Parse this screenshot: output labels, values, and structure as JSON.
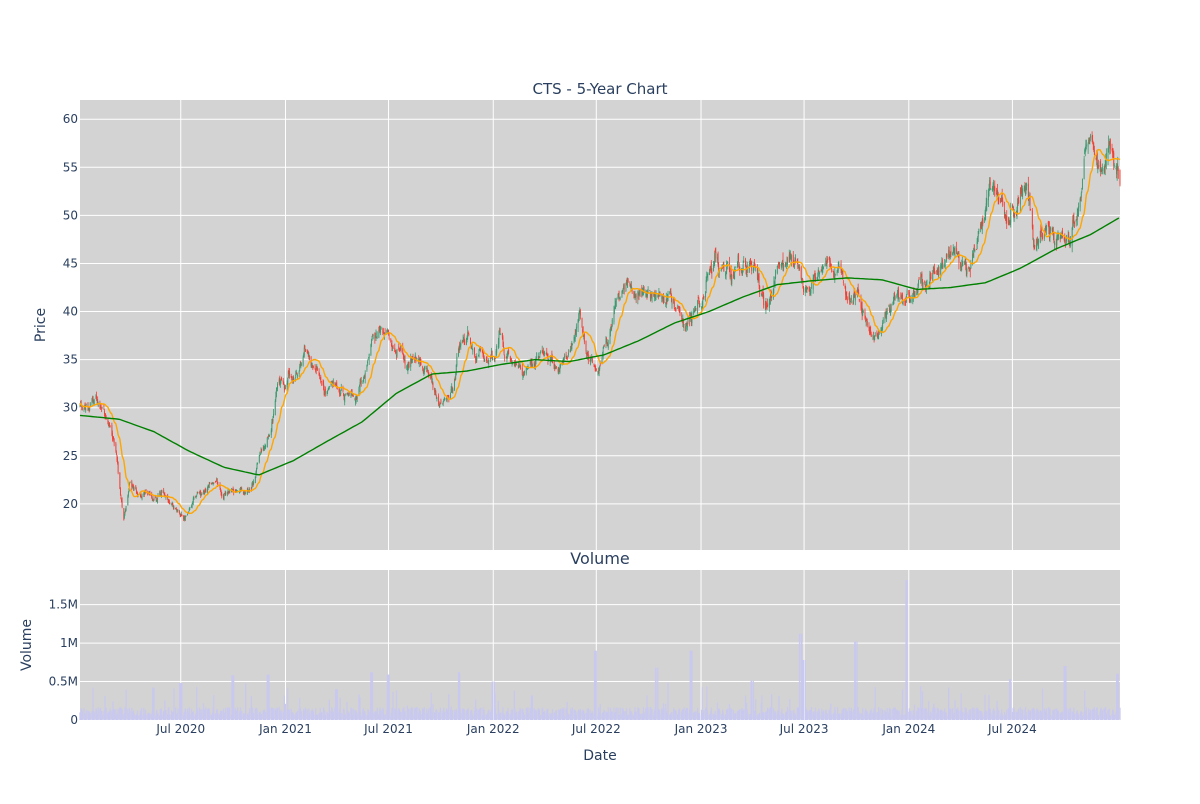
{
  "chart_data": [
    {
      "type": "candlestick",
      "title": "CTS - 5-Year Chart",
      "ylabel": "Price",
      "ylim": [
        15.2,
        62
      ],
      "xlim": [
        "2020-01-06",
        "2025-01-06"
      ],
      "y_ticks": [
        20,
        25,
        30,
        35,
        40,
        45,
        50,
        55,
        60
      ],
      "grid": true,
      "legend": "none",
      "colors": {
        "background": "#d3d3d3",
        "grid": "#ffffff",
        "up": "#3d9970",
        "down": "#ef4136",
        "ma_short": "#ffa500",
        "ma_long": "#008000",
        "text": "#2a3f5f"
      },
      "approx_closes": [
        [
          "2020-01-06",
          30.0
        ],
        [
          "2020-01-27",
          30.5
        ],
        [
          "2020-02-13",
          30.2
        ],
        [
          "2020-02-27",
          27.8
        ],
        [
          "2020-03-10",
          25.0
        ],
        [
          "2020-03-23",
          18.5
        ],
        [
          "2020-04-02",
          22.0
        ],
        [
          "2020-04-16",
          21.0
        ],
        [
          "2020-04-30",
          21.8
        ],
        [
          "2020-05-14",
          20.5
        ],
        [
          "2020-05-28",
          21.5
        ],
        [
          "2020-06-11",
          20.0
        ],
        [
          "2020-06-25",
          19.2
        ],
        [
          "2020-07-09",
          18.8
        ],
        [
          "2020-07-23",
          20.2
        ],
        [
          "2020-08-06",
          20.8
        ],
        [
          "2020-08-27",
          22.0
        ],
        [
          "2020-09-17",
          21.2
        ],
        [
          "2020-10-08",
          21.8
        ],
        [
          "2020-10-22",
          21.0
        ],
        [
          "2020-11-05",
          22.0
        ],
        [
          "2020-11-19",
          25.5
        ],
        [
          "2020-12-03",
          27.5
        ],
        [
          "2020-12-17",
          31.0
        ],
        [
          "2021-01-07",
          33.0
        ],
        [
          "2021-01-21",
          34.0
        ],
        [
          "2021-02-04",
          36.0
        ],
        [
          "2021-02-25",
          34.0
        ],
        [
          "2021-03-11",
          31.5
        ],
        [
          "2021-03-25",
          33.0
        ],
        [
          "2021-04-15",
          31.0
        ],
        [
          "2021-05-06",
          31.5
        ],
        [
          "2021-05-20",
          33.0
        ],
        [
          "2021-06-03",
          36.5
        ],
        [
          "2021-06-17",
          38.5
        ],
        [
          "2021-07-01",
          37.0
        ],
        [
          "2021-07-15",
          36.0
        ],
        [
          "2021-08-05",
          35.0
        ],
        [
          "2021-08-26",
          35.5
        ],
        [
          "2021-09-09",
          33.5
        ],
        [
          "2021-09-23",
          31.5
        ],
        [
          "2021-10-07",
          31.0
        ],
        [
          "2021-10-21",
          31.5
        ],
        [
          "2021-11-04",
          36.5
        ],
        [
          "2021-11-18",
          37.5
        ],
        [
          "2021-12-02",
          35.5
        ],
        [
          "2021-12-23",
          35.0
        ],
        [
          "2022-01-13",
          37.0
        ],
        [
          "2022-02-03",
          34.0
        ],
        [
          "2022-02-24",
          33.0
        ],
        [
          "2022-03-17",
          35.5
        ],
        [
          "2022-04-07",
          35.5
        ],
        [
          "2022-04-28",
          34.0
        ],
        [
          "2022-05-19",
          36.0
        ],
        [
          "2022-06-02",
          40.0
        ],
        [
          "2022-06-16",
          35.0
        ],
        [
          "2022-06-30",
          33.5
        ],
        [
          "2022-07-21",
          37.0
        ],
        [
          "2022-08-04",
          41.0
        ],
        [
          "2022-08-25",
          43.0
        ],
        [
          "2022-09-15",
          42.0
        ],
        [
          "2022-09-29",
          42.5
        ],
        [
          "2022-10-20",
          41.5
        ],
        [
          "2022-11-10",
          41.0
        ],
        [
          "2022-12-01",
          40.0
        ],
        [
          "2022-12-15",
          38.5
        ],
        [
          "2023-01-05",
          42.0
        ],
        [
          "2023-01-26",
          45.5
        ],
        [
          "2023-02-16",
          44.0
        ],
        [
          "2023-03-09",
          44.5
        ],
        [
          "2023-04-06",
          45.0
        ],
        [
          "2023-04-27",
          40.5
        ],
        [
          "2023-05-18",
          44.0
        ],
        [
          "2023-06-08",
          46.0
        ],
        [
          "2023-06-29",
          42.5
        ],
        [
          "2023-07-20",
          43.0
        ],
        [
          "2023-08-10",
          45.0
        ],
        [
          "2023-08-31",
          44.0
        ],
        [
          "2023-09-21",
          41.5
        ],
        [
          "2023-10-12",
          40.5
        ],
        [
          "2023-11-02",
          37.5
        ],
        [
          "2023-11-23",
          39.5
        ],
        [
          "2023-12-14",
          42.0
        ],
        [
          "2024-01-04",
          41.5
        ],
        [
          "2024-01-25",
          43.0
        ],
        [
          "2024-02-15",
          45.0
        ],
        [
          "2024-03-07",
          45.5
        ],
        [
          "2024-03-28",
          45.5
        ],
        [
          "2024-04-18",
          44.5
        ],
        [
          "2024-05-02",
          47.0
        ],
        [
          "2024-05-23",
          53.0
        ],
        [
          "2024-06-06",
          53.0
        ],
        [
          "2024-06-20",
          50.0
        ],
        [
          "2024-07-11",
          51.0
        ],
        [
          "2024-07-25",
          53.5
        ],
        [
          "2024-08-08",
          46.0
        ],
        [
          "2024-08-29",
          48.0
        ],
        [
          "2024-09-19",
          47.5
        ],
        [
          "2024-10-10",
          48.0
        ],
        [
          "2024-10-31",
          53.0
        ],
        [
          "2024-11-07",
          58.0
        ],
        [
          "2024-11-28",
          55.0
        ],
        [
          "2024-12-19",
          56.5
        ],
        [
          "2025-01-06",
          53.0
        ]
      ],
      "ma_long_approx": [
        [
          "2020-01-06",
          29.2
        ],
        [
          "2020-03-15",
          28.8
        ],
        [
          "2020-05-15",
          27.5
        ],
        [
          "2020-07-15",
          25.5
        ],
        [
          "2020-09-15",
          23.8
        ],
        [
          "2020-11-15",
          23.0
        ],
        [
          "2021-01-15",
          24.5
        ],
        [
          "2021-03-15",
          26.5
        ],
        [
          "2021-05-15",
          28.5
        ],
        [
          "2021-07-15",
          31.5
        ],
        [
          "2021-09-15",
          33.5
        ],
        [
          "2021-11-15",
          33.8
        ],
        [
          "2022-01-15",
          34.5
        ],
        [
          "2022-03-15",
          35.0
        ],
        [
          "2022-05-15",
          34.8
        ],
        [
          "2022-07-15",
          35.5
        ],
        [
          "2022-09-15",
          37.0
        ],
        [
          "2022-11-15",
          38.8
        ],
        [
          "2023-01-15",
          40.0
        ],
        [
          "2023-03-15",
          41.5
        ],
        [
          "2023-05-15",
          42.8
        ],
        [
          "2023-07-15",
          43.2
        ],
        [
          "2023-09-15",
          43.5
        ],
        [
          "2023-11-15",
          43.3
        ],
        [
          "2024-01-15",
          42.3
        ],
        [
          "2024-03-15",
          42.5
        ],
        [
          "2024-05-15",
          43.0
        ],
        [
          "2024-07-15",
          44.5
        ],
        [
          "2024-09-15",
          46.5
        ],
        [
          "2024-11-15",
          48.0
        ],
        [
          "2025-01-06",
          49.8
        ]
      ]
    },
    {
      "type": "bar",
      "title": "Volume",
      "xlabel": "Date",
      "ylabel": "Volume",
      "ylim": [
        0,
        1950000
      ],
      "y_ticks": [
        0,
        500000,
        1000000,
        1500000
      ],
      "y_tick_labels": [
        "0",
        "0.5M",
        "1M",
        "1.5M"
      ],
      "x_tick_labels": [
        "Jul 2020",
        "Jan 2021",
        "Jul 2021",
        "Jan 2022",
        "Jul 2022",
        "Jan 2023",
        "Jul 2023",
        "Jan 2024",
        "Jul 2024"
      ],
      "x_tick_dates": [
        "2020-07-01",
        "2021-01-01",
        "2021-07-01",
        "2022-01-01",
        "2022-07-01",
        "2023-01-01",
        "2023-07-01",
        "2024-01-01",
        "2024-07-01"
      ],
      "bar_color": "#c8c8f0",
      "typical_volume": 130000,
      "volume_spikes": [
        [
          "2020-05-15",
          420000
        ],
        [
          "2020-07-01",
          480000
        ],
        [
          "2020-10-01",
          580000
        ],
        [
          "2020-12-01",
          590000
        ],
        [
          "2021-04-01",
          400000
        ],
        [
          "2021-06-01",
          620000
        ],
        [
          "2021-07-01",
          590000
        ],
        [
          "2021-11-01",
          620000
        ],
        [
          "2022-01-01",
          500000
        ],
        [
          "2022-06-30",
          900000
        ],
        [
          "2022-10-15",
          680000
        ],
        [
          "2022-12-15",
          900000
        ],
        [
          "2023-04-01",
          510000
        ],
        [
          "2023-06-25",
          1120000
        ],
        [
          "2023-07-01",
          780000
        ],
        [
          "2023-09-30",
          1020000
        ],
        [
          "2023-12-29",
          1820000
        ],
        [
          "2024-06-28",
          530000
        ],
        [
          "2024-10-01",
          700000
        ],
        [
          "2025-01-02",
          600000
        ]
      ]
    }
  ]
}
